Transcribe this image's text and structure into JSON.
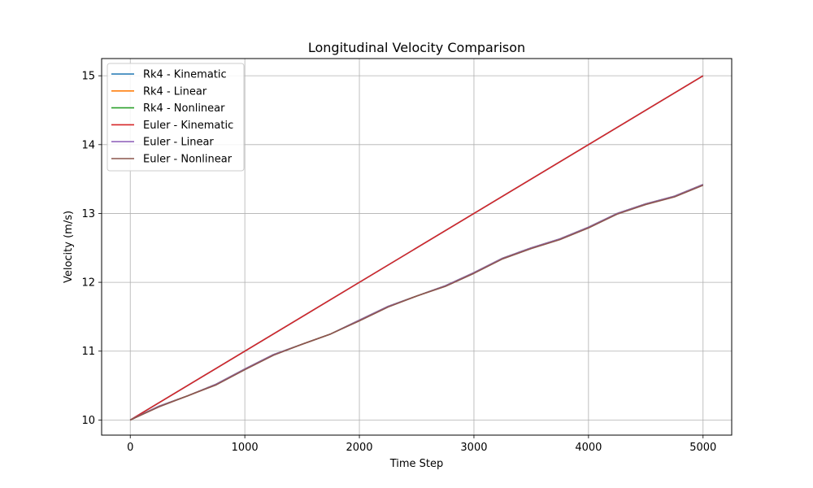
{
  "chart_data": {
    "type": "line",
    "title": "Longitudinal Velocity Comparison",
    "xlabel": "Time Step",
    "ylabel": "Velocity (m/s)",
    "xlim": [
      -250,
      5250
    ],
    "ylim": [
      9.78,
      15.25
    ],
    "xticks": [
      0,
      1000,
      2000,
      3000,
      4000,
      5000
    ],
    "yticks": [
      10,
      11,
      12,
      13,
      14,
      15
    ],
    "grid": true,
    "legend_position": "upper-left",
    "series": [
      {
        "name": "Rk4 - Kinematic",
        "color": "#1f77b4",
        "x": [
          0,
          5000
        ],
        "y": [
          10,
          15
        ]
      },
      {
        "name": "Rk4 - Linear",
        "color": "#ff7f0e",
        "x": [
          0,
          250,
          500,
          750,
          1000,
          1250,
          1500,
          1750,
          2000,
          2250,
          2500,
          2750,
          3000,
          3250,
          3500,
          3750,
          4000,
          4250,
          4500,
          4750,
          5000
        ],
        "y": [
          10.0,
          10.2,
          10.35,
          10.52,
          10.74,
          10.95,
          11.1,
          11.25,
          11.45,
          11.65,
          11.8,
          11.95,
          12.14,
          12.35,
          12.5,
          12.63,
          12.8,
          13.0,
          13.14,
          13.25,
          13.42
        ]
      },
      {
        "name": "Rk4 - Nonlinear",
        "color": "#2ca02c",
        "x": [
          0,
          250,
          500,
          750,
          1000,
          1250,
          1500,
          1750,
          2000,
          2250,
          2500,
          2750,
          3000,
          3250,
          3500,
          3750,
          4000,
          4250,
          4500,
          4750,
          5000
        ],
        "y": [
          10.0,
          10.2,
          10.35,
          10.52,
          10.74,
          10.95,
          11.1,
          11.25,
          11.45,
          11.65,
          11.8,
          11.95,
          12.14,
          12.35,
          12.5,
          12.63,
          12.8,
          13.0,
          13.14,
          13.25,
          13.42
        ]
      },
      {
        "name": "Euler - Kinematic",
        "color": "#d62728",
        "x": [
          0,
          5000
        ],
        "y": [
          10,
          15
        ]
      },
      {
        "name": "Euler - Linear",
        "color": "#9467bd",
        "x": [
          0,
          250,
          500,
          750,
          1000,
          1250,
          1500,
          1750,
          2000,
          2250,
          2500,
          2750,
          3000,
          3250,
          3500,
          3750,
          4000,
          4250,
          4500,
          4750,
          5000
        ],
        "y": [
          10.0,
          10.2,
          10.35,
          10.52,
          10.74,
          10.95,
          11.1,
          11.25,
          11.45,
          11.65,
          11.8,
          11.95,
          12.14,
          12.35,
          12.5,
          12.63,
          12.8,
          13.0,
          13.14,
          13.25,
          13.42
        ]
      },
      {
        "name": "Euler - Nonlinear",
        "color": "#8c564b",
        "x": [
          0,
          250,
          500,
          750,
          1000,
          1250,
          1500,
          1750,
          2000,
          2250,
          2500,
          2750,
          3000,
          3250,
          3500,
          3750,
          4000,
          4250,
          4500,
          4750,
          5000
        ],
        "y": [
          10.0,
          10.19,
          10.35,
          10.51,
          10.73,
          10.94,
          11.1,
          11.25,
          11.44,
          11.64,
          11.8,
          11.94,
          12.13,
          12.34,
          12.49,
          12.62,
          12.79,
          12.99,
          13.13,
          13.24,
          13.41
        ]
      }
    ]
  }
}
